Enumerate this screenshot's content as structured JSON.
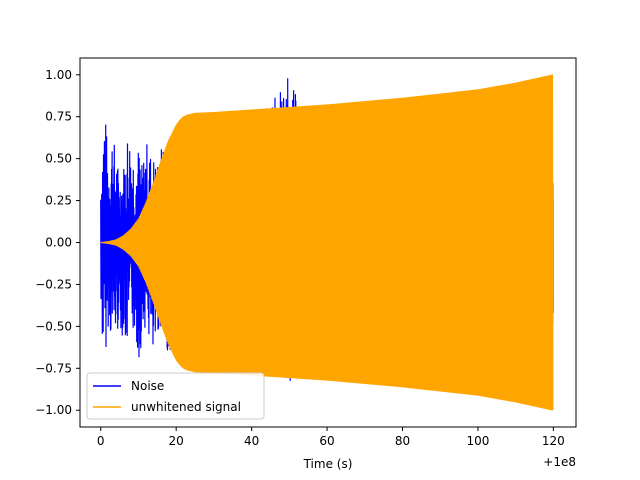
{
  "chart_data": {
    "type": "line",
    "title": "",
    "xlabel": "Time (s)",
    "ylabel": "",
    "x_offset_label": "+1e8",
    "xlim": [
      -5.5,
      126
    ],
    "ylim": [
      -1.1,
      1.1
    ],
    "x_ticks": [
      0,
      20,
      40,
      60,
      80,
      100,
      120
    ],
    "y_ticks": [
      1.0,
      0.75,
      0.5,
      0.25,
      0.0,
      -0.25,
      -0.5,
      -0.75,
      -1.0
    ],
    "x_tick_labels": [
      "0",
      "20",
      "40",
      "60",
      "80",
      "100",
      "120"
    ],
    "y_tick_labels": [
      "1.00",
      "0.75",
      "0.50",
      "0.25",
      "0.00",
      "−0.25",
      "−0.50",
      "−0.75",
      "−1.00"
    ],
    "grid": false,
    "legend_position": "lower-left",
    "series": [
      {
        "name": "Noise",
        "color": "#0000ff",
        "envelope_x": [
          0,
          1,
          2,
          3,
          4,
          5,
          6,
          7,
          8,
          9,
          10,
          11,
          12,
          13,
          14,
          15,
          16,
          17,
          18,
          19,
          20,
          25,
          30,
          35,
          40,
          45,
          50,
          55,
          60,
          65,
          70,
          80,
          90,
          100,
          110,
          120
        ],
        "envelope_upper": [
          0.45,
          0.85,
          0.5,
          0.68,
          0.55,
          0.4,
          0.45,
          0.68,
          0.65,
          0.52,
          0.58,
          0.46,
          0.62,
          0.55,
          0.52,
          0.48,
          0.6,
          0.52,
          0.48,
          0.55,
          0.45,
          0.4,
          0.42,
          0.5,
          0.45,
          0.85,
          1.0,
          0.65,
          0.6,
          0.84,
          0.6,
          0.6,
          0.65,
          0.6,
          0.55,
          0.6
        ],
        "envelope_lower": [
          -0.52,
          -0.72,
          -0.5,
          -0.6,
          -0.55,
          -0.5,
          -0.58,
          -0.65,
          -0.52,
          -0.55,
          -0.72,
          -0.58,
          -0.48,
          -0.62,
          -0.8,
          -0.55,
          -0.5,
          -0.6,
          -0.72,
          -0.55,
          -0.45,
          -0.48,
          -0.5,
          -0.55,
          -0.45,
          -0.8,
          -0.86,
          -0.6,
          -0.55,
          -0.55,
          -0.6,
          -0.6,
          -0.6,
          -0.6,
          -0.55,
          -0.6
        ]
      },
      {
        "name": "unwhitened signal",
        "color": "#ffa500",
        "envelope_x": [
          0,
          2,
          4,
          6,
          8,
          10,
          12,
          14,
          16,
          18,
          20,
          21,
          22,
          23,
          24,
          25,
          30,
          40,
          60,
          80,
          100,
          110,
          120
        ],
        "envelope_upper": [
          0.0,
          0.005,
          0.015,
          0.04,
          0.08,
          0.14,
          0.24,
          0.36,
          0.49,
          0.61,
          0.7,
          0.73,
          0.75,
          0.76,
          0.765,
          0.77,
          0.775,
          0.79,
          0.82,
          0.86,
          0.91,
          0.95,
          1.0
        ],
        "envelope_lower": [
          0.0,
          -0.005,
          -0.015,
          -0.04,
          -0.08,
          -0.14,
          -0.24,
          -0.36,
          -0.49,
          -0.61,
          -0.7,
          -0.73,
          -0.75,
          -0.76,
          -0.765,
          -0.77,
          -0.775,
          -0.79,
          -0.82,
          -0.86,
          -0.91,
          -0.95,
          -1.0
        ]
      }
    ]
  }
}
